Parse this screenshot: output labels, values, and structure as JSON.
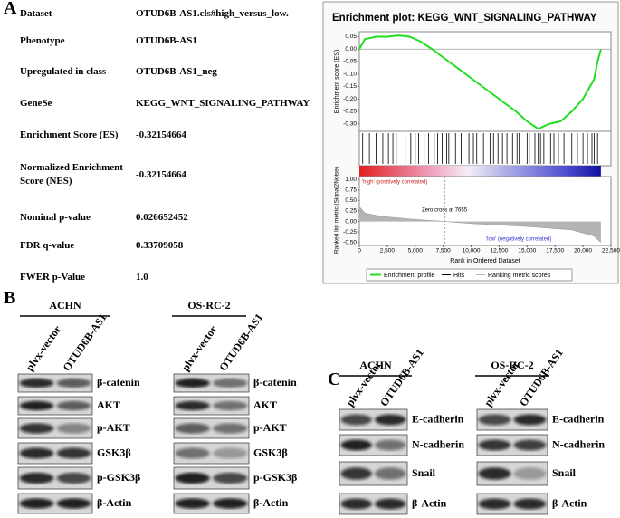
{
  "panel_labels": [
    "A",
    "B",
    "C"
  ],
  "gsea_table": {
    "rows": [
      [
        "Dataset",
        "OTUD6B-AS1.cls#high_versus_low."
      ],
      [
        "Phenotype",
        "OTUD6B-AS1"
      ],
      [
        "Upregulated in class",
        "OTUD6B-AS1_neg"
      ],
      [
        "GeneSe",
        "KEGG_WNT_SIGNALING_PATHWAY"
      ],
      [
        "Enrichment Score (ES)",
        "-0.32154664"
      ],
      [
        "Normalized Enrichment Score (NES)",
        "-0.32154664"
      ],
      [
        "Nominal p-value",
        "0.026652452"
      ],
      [
        "FDR q-value",
        "0.33709058"
      ],
      [
        "FWER p-Value",
        "1.0"
      ]
    ]
  },
  "chart_data": {
    "type": "line",
    "title": "Enrichment plot: KEGG_WNT_SIGNALING_PATHWAY",
    "y_label": "Enrichment score (ES)",
    "x_label": "Rank in Ordered Dataset",
    "x": [
      0,
      500,
      1500,
      2500,
      3500,
      4500,
      5500,
      6500,
      8000,
      9500,
      11000,
      12500,
      14000,
      15000,
      16000,
      17000,
      18000,
      19000,
      20000,
      21000,
      21300,
      21600
    ],
    "series": [
      {
        "name": "Enrichment profile",
        "color": "#22dd22",
        "values": [
          0,
          0.04,
          0.05,
          0.05,
          0.055,
          0.05,
          0.03,
          0,
          -0.05,
          -0.1,
          -0.15,
          -0.2,
          -0.25,
          -0.29,
          -0.32,
          -0.3,
          -0.29,
          -0.25,
          -0.2,
          -0.12,
          -0.05,
          0
        ]
      }
    ],
    "xlim": [
      0,
      22500
    ],
    "xticks": [
      0,
      {
        "value": 2500,
        "label": "2,500"
      },
      {
        "value": 5000,
        "label": "5,000"
      },
      {
        "value": 7500,
        "label": "7,500"
      },
      {
        "value": 10000,
        "label": "10,000"
      },
      {
        "value": 12500,
        "label": "12,500"
      },
      {
        "value": 15000,
        "label": "15,000"
      },
      {
        "value": 17500,
        "label": "17,500"
      },
      {
        "value": 20000,
        "label": "20,000"
      },
      {
        "value": 22500,
        "label": "22,500"
      }
    ],
    "ylim": [
      -0.33,
      0.07
    ],
    "yticks": [
      0.05,
      {
        "value": 0,
        "label": "0.00"
      },
      -0.05,
      {
        "value": -0.1,
        "label": "-0.10"
      },
      -0.15,
      {
        "value": -0.2,
        "label": "-0.20"
      },
      -0.25,
      {
        "value": -0.3,
        "label": "-0.30"
      }
    ],
    "hits": {
      "name": "Hits",
      "color": "#000000",
      "x": [
        300,
        900,
        1500,
        2100,
        2600,
        3000,
        3300,
        4100,
        4600,
        5000,
        5300,
        5800,
        6200,
        6700,
        7000,
        7400,
        7800,
        8000,
        8600,
        9100,
        9800,
        10200,
        10500,
        11100,
        11700,
        12000,
        12400,
        12800,
        13200,
        13700,
        14100,
        14300,
        15000,
        15200,
        15700,
        16000,
        16200,
        16500,
        17100,
        17400,
        17800,
        18300,
        19000,
        19500,
        20000,
        20400,
        20800,
        21000,
        21300
      ]
    },
    "metric": {
      "name": "Ranking metric scores",
      "color": "#b4b4b4",
      "y_label": "Ranked list metric (Signal2Noise)",
      "x": [
        0,
        500,
        2000,
        5000,
        7655,
        10000,
        15000,
        19000,
        21000,
        21600
      ],
      "values": [
        0.35,
        0.2,
        0.12,
        0.05,
        0,
        -0.05,
        -0.12,
        -0.2,
        -0.35,
        -0.5
      ],
      "ylim": [
        -0.55,
        1.05
      ],
      "yticks": [
        {
          "value": 1,
          "label": "1.00"
        },
        0.75,
        {
          "value": 0.5,
          "label": "0.50"
        },
        0.25,
        {
          "value": 0,
          "label": "0.00"
        },
        -0.25,
        {
          "value": -0.5,
          "label": "-0.50"
        }
      ]
    },
    "zero_cross": 7655,
    "annotations": {
      "high": "'high' (positively correlated)",
      "zero": "Zero cross at 7655",
      "low": "'low' (negatively correlated)"
    }
  },
  "western_blots": {
    "panel_b": {
      "groups": [
        {
          "cell_line": "ACHN",
          "lanes": [
            "plvx-vector",
            "OTUD6B-AS1"
          ],
          "proteins": [
            "β-catenin",
            "AKT",
            "p-AKT",
            "GSK3β",
            "p-GSK3β",
            "β-Actin"
          ]
        },
        {
          "cell_line": "OS-RC-2",
          "lanes": [
            "plvx-vector",
            "OTUD6B-AS1"
          ],
          "proteins": [
            "β-catenin",
            "AKT",
            "p-AKT",
            "GSK3β",
            "p-GSK3β",
            "β-Actin"
          ]
        }
      ]
    },
    "panel_c": {
      "groups": [
        {
          "cell_line": "ACHN",
          "lanes": [
            "plvx-vector",
            "OTUD6B-AS1"
          ],
          "proteins": [
            "E-cadherin",
            "N-cadherin",
            "Snail",
            "β-Actin"
          ]
        },
        {
          "cell_line": "OS-RC-2",
          "lanes": [
            "plvx-vector",
            "OTUD6B-AS1"
          ],
          "proteins": [
            "E-cadherin",
            "N-cadherin",
            "Snail",
            "β-Actin"
          ]
        }
      ]
    }
  }
}
